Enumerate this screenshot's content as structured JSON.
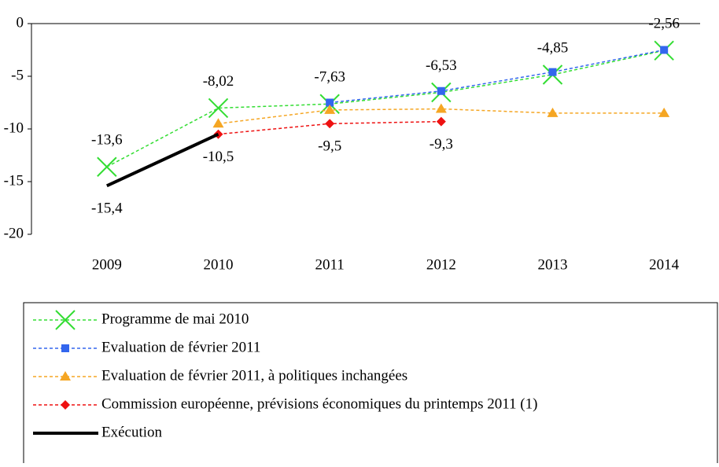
{
  "chart_data": {
    "type": "line",
    "categories": [
      "2009",
      "2010",
      "2011",
      "2012",
      "2013",
      "2014"
    ],
    "ylim": [
      -20,
      0
    ],
    "yticks": [
      -20,
      -15,
      -10,
      -5,
      0
    ],
    "series": [
      {
        "name": "Programme de mai 2010",
        "color": "#33dd33",
        "style": "dashed",
        "marker": "x",
        "values": [
          -13.6,
          -8.02,
          -7.63,
          -6.53,
          -4.85,
          -2.56
        ],
        "value_labels": [
          "-13,6",
          "-8,02",
          "-7,63",
          "-6,53",
          "-4,85",
          "-2,56"
        ]
      },
      {
        "name": "Evaluation de février 2011",
        "color": "#3366ee",
        "style": "dashed",
        "marker": "square",
        "values": [
          null,
          null,
          -7.5,
          -6.4,
          -4.6,
          -2.5
        ]
      },
      {
        "name": "Evaluation de février 2011, à politiques inchangées",
        "color": "#f5a623",
        "style": "dashed",
        "marker": "triangle",
        "values": [
          null,
          -9.5,
          -8.2,
          -8.1,
          -8.5,
          -8.5
        ]
      },
      {
        "name": "Commission européenne, prévisions économiques du printemps 2011 (1)",
        "color": "#ee1111",
        "style": "dashed",
        "marker": "diamond",
        "values": [
          null,
          -10.5,
          -9.5,
          -9.3,
          null,
          null
        ],
        "value_labels": [
          null,
          null,
          "-9,5",
          "-9,3",
          null,
          null
        ]
      },
      {
        "name": "Exécution",
        "color": "#000000",
        "style": "solid",
        "marker": null,
        "values": [
          -15.4,
          -10.5,
          null,
          null,
          null,
          null
        ],
        "value_labels": [
          "-15,4",
          "-10,5",
          null,
          null,
          null,
          null
        ]
      }
    ]
  }
}
